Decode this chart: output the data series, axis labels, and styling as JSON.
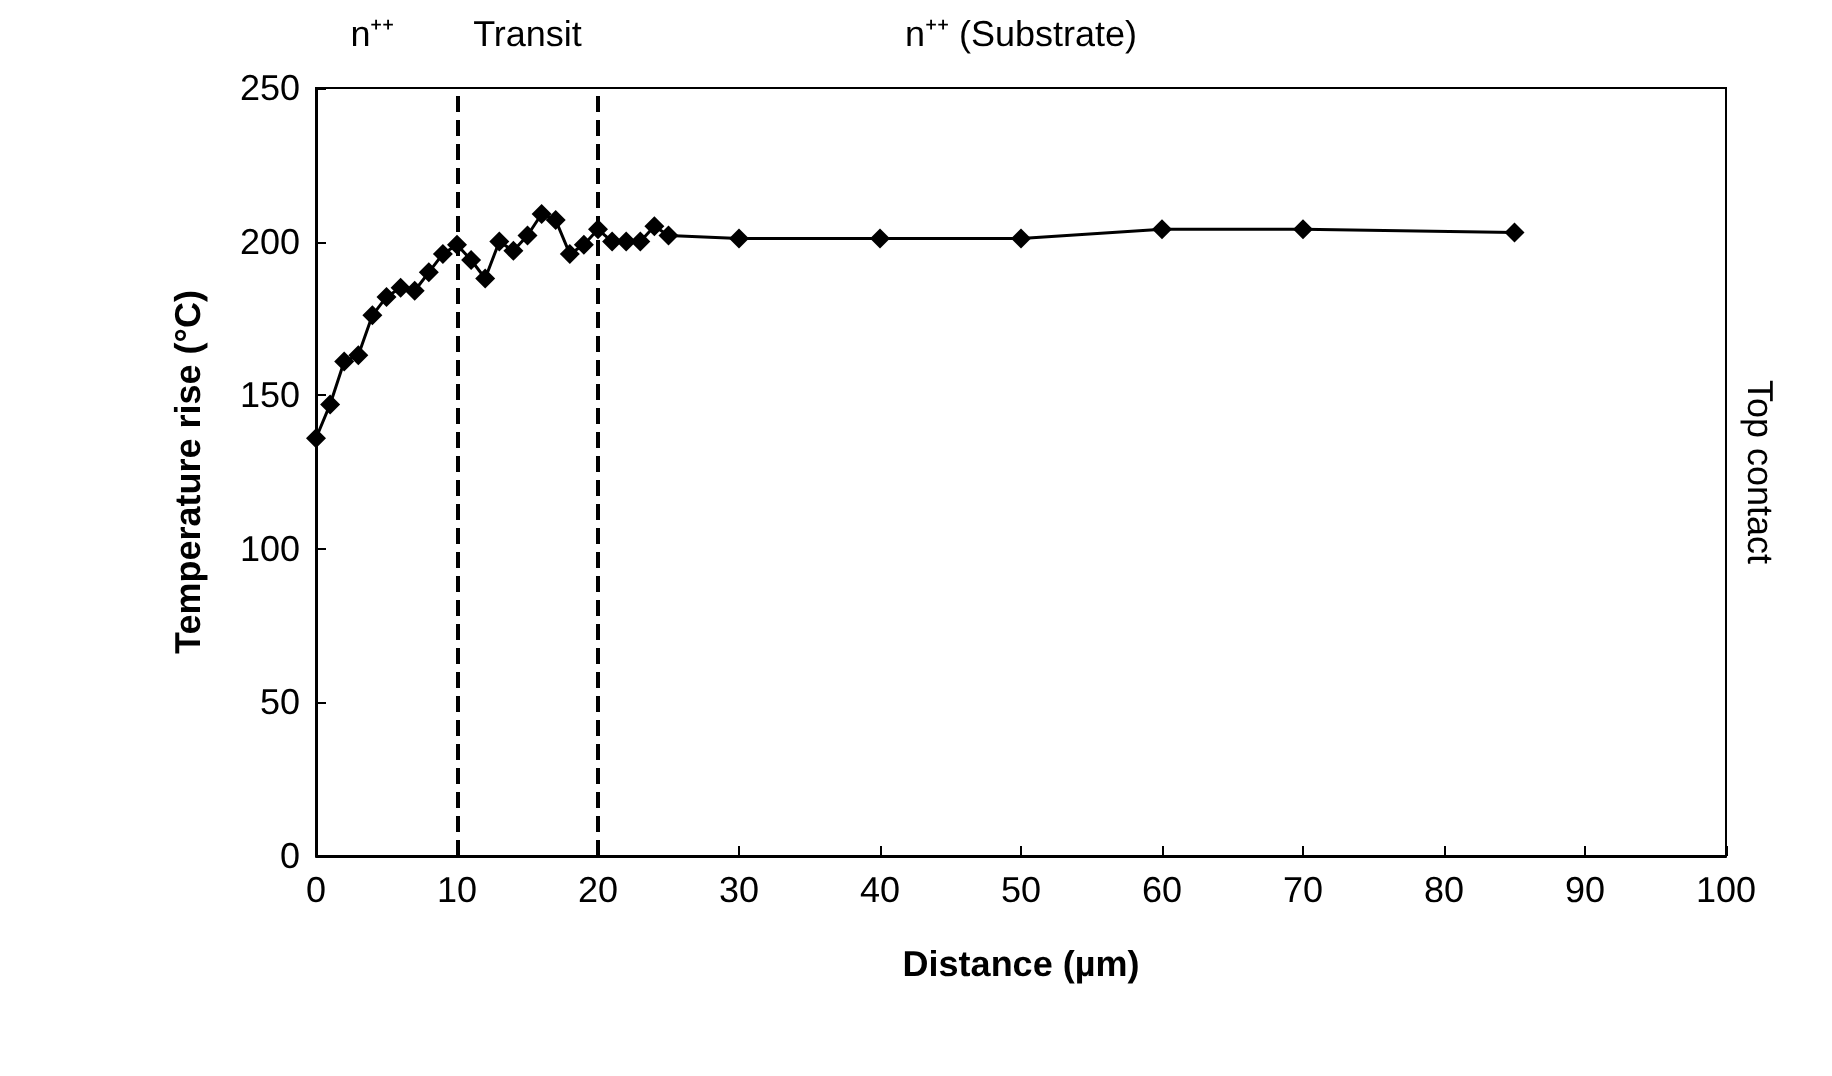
{
  "chart_data": {
    "type": "line",
    "xlabel": "Distance (µm)",
    "ylabel": "Temperature rise (°C)",
    "x": [
      0,
      1,
      2,
      3,
      4,
      5,
      6,
      7,
      8,
      9,
      10,
      11,
      12,
      13,
      14,
      15,
      16,
      17,
      18,
      19,
      20,
      21,
      22,
      23,
      24,
      25,
      30,
      40,
      50,
      60,
      70,
      85
    ],
    "series": [
      {
        "color": "#000000",
        "values": [
          136,
          147,
          161,
          163,
          176,
          182,
          185,
          184,
          190,
          196,
          199,
          194,
          188,
          200,
          197,
          202,
          209,
          207,
          196,
          199,
          204,
          200,
          200,
          200,
          205,
          202,
          201,
          201,
          201,
          204,
          204,
          203
        ]
      }
    ],
    "xlim": [
      0,
      100
    ],
    "xticks": [
      0,
      10,
      20,
      30,
      40,
      50,
      60,
      70,
      80,
      90,
      100
    ],
    "ylim": [
      0,
      250
    ],
    "yticks": [
      0,
      50,
      100,
      150,
      200,
      250
    ],
    "ref_lines": [
      {
        "axis": "x",
        "value": 10,
        "line_style": "dashed",
        "color": "#000000"
      },
      {
        "axis": "x",
        "value": 20,
        "line_style": "dashed",
        "color": "#000000"
      }
    ],
    "annotations": [
      "n⁺⁺",
      "Transit",
      "n⁺⁺ (Substrate)",
      "Top contact"
    ],
    "marker": "diamond",
    "line_style": "solid",
    "grid": false
  }
}
